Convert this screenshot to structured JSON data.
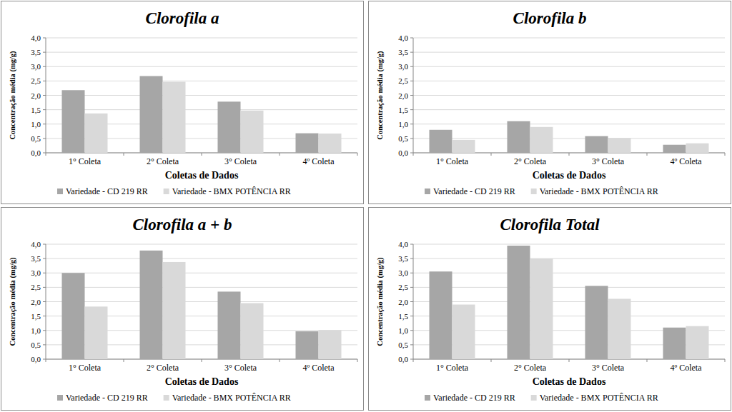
{
  "chart_data": [
    {
      "type": "bar",
      "title": "Clorofila a",
      "x_label": "Coletas de Dados",
      "y_label": "Concentração média (mg/g)",
      "categories": [
        "1° Coleta",
        "2° Coleta",
        "3° Coleta",
        "4º Coleta"
      ],
      "series": [
        {
          "name": "Variedade - CD 219 RR",
          "color": "#a6a6a6",
          "values": [
            2.18,
            2.67,
            1.78,
            0.68
          ]
        },
        {
          "name": "Variedade - BMX POTÊNCIA RR",
          "color": "#d9d9d9",
          "values": [
            1.37,
            2.47,
            1.47,
            0.67
          ]
        }
      ],
      "ylim": [
        0,
        4
      ],
      "yticks": [
        {
          "value": 0,
          "label": "0,0"
        },
        {
          "value": 0.5,
          "label": "0,5"
        },
        {
          "value": 1,
          "label": "1,0"
        },
        {
          "value": 1.5,
          "label": "1,5"
        },
        {
          "value": 2,
          "label": "2,0"
        },
        {
          "value": 2.5,
          "label": "2,5"
        },
        {
          "value": 3,
          "label": "3,0"
        },
        {
          "value": 3.5,
          "label": "3,5"
        },
        {
          "value": 4,
          "label": "4,0"
        }
      ],
      "grid": true,
      "legend": "bottom"
    },
    {
      "type": "bar",
      "title": "Clorofila b",
      "x_label": "Coletas de Dados",
      "y_label": "Concentração média (mg/g)",
      "categories": [
        "1° Coleta",
        "2° Coleta",
        "3° Coleta",
        "4º Coleta"
      ],
      "series": [
        {
          "name": "Variedade - CD 219 RR",
          "color": "#a6a6a6",
          "values": [
            0.8,
            1.1,
            0.58,
            0.28
          ]
        },
        {
          "name": "Variedade - BMX POTÊNCIA RR",
          "color": "#d9d9d9",
          "values": [
            0.45,
            0.9,
            0.52,
            0.33
          ]
        }
      ],
      "ylim": [
        0,
        4
      ],
      "yticks": [
        {
          "value": 0,
          "label": "0,0"
        },
        {
          "value": 0.5,
          "label": "0,5"
        },
        {
          "value": 1,
          "label": "1,0"
        },
        {
          "value": 1.5,
          "label": "1,5"
        },
        {
          "value": 2,
          "label": "2,0"
        },
        {
          "value": 2.5,
          "label": "2,5"
        },
        {
          "value": 3,
          "label": "3,0"
        },
        {
          "value": 3.5,
          "label": "3,5"
        },
        {
          "value": 4,
          "label": "4,0"
        }
      ],
      "grid": true,
      "legend": "bottom"
    },
    {
      "type": "bar",
      "title": "Clorofila a + b",
      "x_label": "Coletas de Dados",
      "y_label": "Concentração média (mg/g)",
      "categories": [
        "1° Coleta",
        "2° Coleta",
        "3° Coleta",
        "4º Coleta"
      ],
      "series": [
        {
          "name": "Variedade - CD 219 RR",
          "color": "#a6a6a6",
          "values": [
            3.0,
            3.78,
            2.35,
            0.97
          ]
        },
        {
          "name": "Variedade - BMX POTÊNCIA RR",
          "color": "#d9d9d9",
          "values": [
            1.83,
            3.38,
            1.95,
            1.01
          ]
        }
      ],
      "ylim": [
        0,
        4
      ],
      "yticks": [
        {
          "value": 0,
          "label": "0,0"
        },
        {
          "value": 0.5,
          "label": "0,5"
        },
        {
          "value": 1,
          "label": "1,0"
        },
        {
          "value": 1.5,
          "label": "1,5"
        },
        {
          "value": 2,
          "label": "2,0"
        },
        {
          "value": 2.5,
          "label": "2,5"
        },
        {
          "value": 3,
          "label": "3,0"
        },
        {
          "value": 3.5,
          "label": "3,5"
        },
        {
          "value": 4,
          "label": "4,0"
        }
      ],
      "grid": true,
      "legend": "bottom"
    },
    {
      "type": "bar",
      "title": "Clorofila Total",
      "x_label": "Coletas de Dados",
      "y_label": "Concentração média (mg/g)",
      "categories": [
        "1° Coleta",
        "2° Coleta",
        "3° Coleta",
        "4º Coleta"
      ],
      "series": [
        {
          "name": "Variedade - CD 219 RR",
          "color": "#a6a6a6",
          "values": [
            3.05,
            3.95,
            2.55,
            1.1
          ]
        },
        {
          "name": "Variedade - BMX POTÊNCIA RR",
          "color": "#d9d9d9",
          "values": [
            1.9,
            3.5,
            2.1,
            1.15
          ]
        }
      ],
      "ylim": [
        0,
        4
      ],
      "yticks": [
        {
          "value": 0,
          "label": "0,0"
        },
        {
          "value": 0.5,
          "label": "0,5"
        },
        {
          "value": 1,
          "label": "1,0"
        },
        {
          "value": 1.5,
          "label": "1,5"
        },
        {
          "value": 2,
          "label": "2,0"
        },
        {
          "value": 2.5,
          "label": "2,5"
        },
        {
          "value": 3,
          "label": "3,0"
        },
        {
          "value": 3.5,
          "label": "3,5"
        },
        {
          "value": 4,
          "label": "4,0"
        }
      ],
      "grid": true,
      "legend": "bottom"
    }
  ]
}
